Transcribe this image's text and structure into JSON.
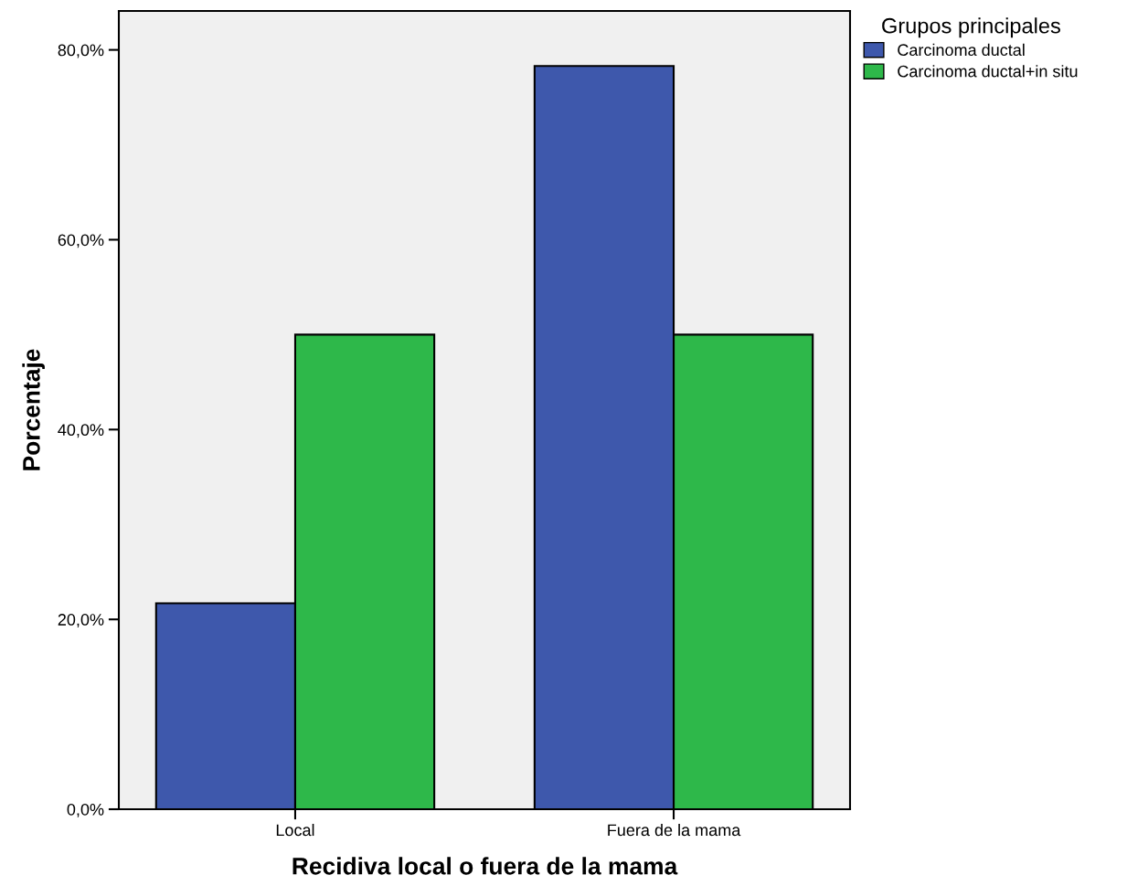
{
  "chart_data": {
    "type": "bar",
    "xlabel": "Recidiva local o fuera de la mama",
    "ylabel": "Porcentaje",
    "legend_title": "Grupos principales",
    "categories": [
      "Local",
      "Fuera de la mama"
    ],
    "series": [
      {
        "name": "Carcinoma ductal",
        "color": "#3e58ac",
        "values": [
          21.7,
          78.3
        ]
      },
      {
        "name": "Carcinoma ductal+in situ",
        "color": "#2eb84a",
        "values": [
          50.0,
          50.0
        ]
      }
    ],
    "ylim": [
      0,
      84.1
    ],
    "yticks": [
      {
        "value": 0,
        "label": "0,0%"
      },
      {
        "value": 20,
        "label": "20,0%"
      },
      {
        "value": 40,
        "label": "40,0%"
      },
      {
        "value": 60,
        "label": "60,0%"
      },
      {
        "value": 80,
        "label": "80,0%"
      }
    ],
    "grid": false,
    "legend": "top right"
  }
}
